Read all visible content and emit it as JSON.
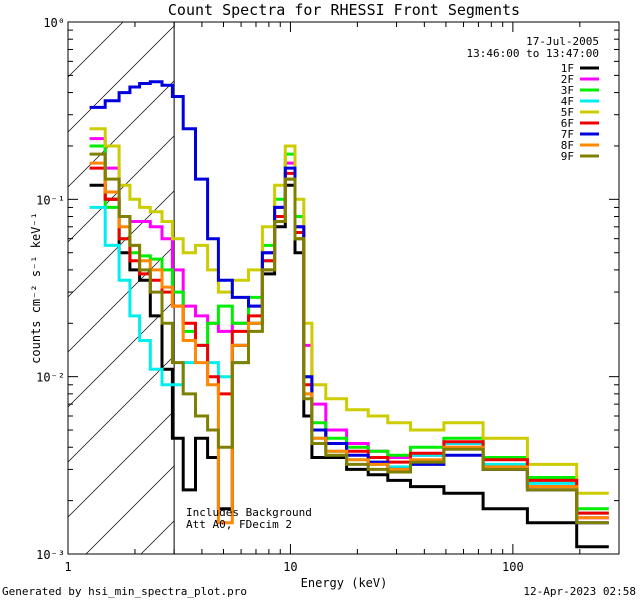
{
  "chart_data": {
    "type": "line",
    "title": "Count Spectra for RHESSI Front Segments",
    "xlabel": "Energy (keV)",
    "ylabel": "counts cm⁻² s⁻¹ keV⁻¹",
    "xscale": "log",
    "yscale": "log",
    "xlim": [
      1.0,
      300.0
    ],
    "ylim": [
      0.001,
      1.0
    ],
    "x_ticks": [
      {
        "value": 1,
        "label": "1"
      },
      {
        "value": 10,
        "label": "10"
      },
      {
        "value": 100,
        "label": "100"
      }
    ],
    "y_ticks": [
      {
        "value": 0.001,
        "label": "10⁻³"
      },
      {
        "value": 0.01,
        "label": "10⁻²"
      },
      {
        "value": 0.1,
        "label": "10⁻¹"
      },
      {
        "value": 1.0,
        "label": "10⁰"
      }
    ],
    "hatched_region": {
      "x_min": 1.0,
      "x_max": 3.0
    },
    "annotations": {
      "date": "17-Jul-2005",
      "time_range": "13:46:00 to 13:47:00",
      "background_note": "Includes Background",
      "attenuator_note": "Att A0, FDecim 2"
    },
    "legend_position": "top-right",
    "series": [
      {
        "name": "1F",
        "color": "#000000",
        "points": [
          [
            1.35,
            0.12
          ],
          [
            1.6,
            0.1
          ],
          [
            1.8,
            0.05
          ],
          [
            2.0,
            0.04
          ],
          [
            2.2,
            0.035
          ],
          [
            2.5,
            0.022
          ],
          [
            2.8,
            0.011
          ],
          [
            3.1,
            0.0045
          ],
          [
            3.5,
            0.0023
          ],
          [
            4.0,
            0.0045
          ],
          [
            4.5,
            0.0035
          ],
          [
            5.0,
            0.0018
          ],
          [
            6.0,
            0.015
          ],
          [
            7.0,
            0.02
          ],
          [
            8.0,
            0.038
          ],
          [
            9.0,
            0.07
          ],
          [
            10.0,
            0.12
          ],
          [
            11.0,
            0.05
          ],
          [
            12.0,
            0.006
          ],
          [
            13.0,
            0.0035
          ],
          [
            16.0,
            0.0035
          ],
          [
            20.0,
            0.003
          ],
          [
            25.0,
            0.0028
          ],
          [
            30.0,
            0.0026
          ],
          [
            40.0,
            0.0024
          ],
          [
            60.0,
            0.0022
          ],
          [
            90.0,
            0.0018
          ],
          [
            150.0,
            0.0015
          ],
          [
            250.0,
            0.0011
          ]
        ]
      },
      {
        "name": "2F",
        "color": "#ff00ff",
        "points": [
          [
            1.35,
            0.22
          ],
          [
            1.6,
            0.15
          ],
          [
            1.8,
            0.08
          ],
          [
            2.0,
            0.075
          ],
          [
            2.2,
            0.075
          ],
          [
            2.5,
            0.07
          ],
          [
            2.8,
            0.06
          ],
          [
            3.1,
            0.04
          ],
          [
            3.5,
            0.025
          ],
          [
            4.0,
            0.022
          ],
          [
            4.5,
            0.02
          ],
          [
            5.0,
            0.018
          ],
          [
            6.0,
            0.02
          ],
          [
            7.0,
            0.025
          ],
          [
            8.0,
            0.05
          ],
          [
            9.0,
            0.09
          ],
          [
            10.0,
            0.16
          ],
          [
            11.0,
            0.07
          ],
          [
            12.0,
            0.015
          ],
          [
            13.0,
            0.007
          ],
          [
            16.0,
            0.005
          ],
          [
            20.0,
            0.0042
          ],
          [
            25.0,
            0.0038
          ],
          [
            30.0,
            0.0035
          ],
          [
            40.0,
            0.0036
          ],
          [
            60.0,
            0.004
          ],
          [
            90.0,
            0.003
          ],
          [
            150.0,
            0.0024
          ],
          [
            250.0,
            0.0016
          ]
        ]
      },
      {
        "name": "3F",
        "color": "#00ee00",
        "points": [
          [
            1.35,
            0.2
          ],
          [
            1.6,
            0.09
          ],
          [
            1.8,
            0.06
          ],
          [
            2.0,
            0.05
          ],
          [
            2.2,
            0.048
          ],
          [
            2.5,
            0.046
          ],
          [
            2.8,
            0.04
          ],
          [
            3.1,
            0.03
          ],
          [
            3.5,
            0.018
          ],
          [
            4.0,
            0.015
          ],
          [
            4.5,
            0.02
          ],
          [
            5.0,
            0.025
          ],
          [
            6.0,
            0.02
          ],
          [
            7.0,
            0.028
          ],
          [
            8.0,
            0.055
          ],
          [
            9.0,
            0.1
          ],
          [
            10.0,
            0.18
          ],
          [
            11.0,
            0.08
          ],
          [
            12.0,
            0.01
          ],
          [
            13.0,
            0.0055
          ],
          [
            16.0,
            0.0045
          ],
          [
            20.0,
            0.004
          ],
          [
            25.0,
            0.0038
          ],
          [
            30.0,
            0.0036
          ],
          [
            40.0,
            0.004
          ],
          [
            60.0,
            0.0045
          ],
          [
            90.0,
            0.0035
          ],
          [
            150.0,
            0.0027
          ],
          [
            250.0,
            0.0018
          ]
        ]
      },
      {
        "name": "4F",
        "color": "#00eeee",
        "points": [
          [
            1.35,
            0.09
          ],
          [
            1.6,
            0.055
          ],
          [
            1.8,
            0.035
          ],
          [
            2.0,
            0.022
          ],
          [
            2.2,
            0.016
          ],
          [
            2.5,
            0.011
          ],
          [
            2.8,
            0.009
          ],
          [
            3.1,
            0.009
          ],
          [
            3.5,
            0.012
          ],
          [
            4.0,
            0.015
          ],
          [
            4.5,
            0.012
          ],
          [
            5.0,
            0.01
          ],
          [
            6.0,
            0.012
          ],
          [
            7.0,
            0.02
          ],
          [
            8.0,
            0.045
          ],
          [
            9.0,
            0.08
          ],
          [
            10.0,
            0.13
          ],
          [
            11.0,
            0.06
          ],
          [
            12.0,
            0.008
          ],
          [
            13.0,
            0.0045
          ],
          [
            16.0,
            0.0038
          ],
          [
            20.0,
            0.0034
          ],
          [
            25.0,
            0.0032
          ],
          [
            30.0,
            0.0031
          ],
          [
            40.0,
            0.0036
          ],
          [
            60.0,
            0.0042
          ],
          [
            90.0,
            0.0032
          ],
          [
            150.0,
            0.0025
          ],
          [
            250.0,
            0.0017
          ]
        ]
      },
      {
        "name": "5F",
        "color": "#cccc00",
        "points": [
          [
            1.35,
            0.25
          ],
          [
            1.6,
            0.2
          ],
          [
            1.8,
            0.12
          ],
          [
            2.0,
            0.1
          ],
          [
            2.2,
            0.09
          ],
          [
            2.5,
            0.085
          ],
          [
            2.8,
            0.075
          ],
          [
            3.1,
            0.06
          ],
          [
            3.5,
            0.05
          ],
          [
            4.0,
            0.055
          ],
          [
            4.5,
            0.04
          ],
          [
            5.0,
            0.03
          ],
          [
            6.0,
            0.035
          ],
          [
            7.0,
            0.04
          ],
          [
            8.0,
            0.07
          ],
          [
            9.0,
            0.12
          ],
          [
            10.0,
            0.2
          ],
          [
            11.0,
            0.1
          ],
          [
            12.0,
            0.02
          ],
          [
            13.0,
            0.009
          ],
          [
            16.0,
            0.0075
          ],
          [
            20.0,
            0.0065
          ],
          [
            25.0,
            0.006
          ],
          [
            30.0,
            0.0055
          ],
          [
            40.0,
            0.005
          ],
          [
            60.0,
            0.0055
          ],
          [
            90.0,
            0.0045
          ],
          [
            150.0,
            0.0032
          ],
          [
            250.0,
            0.0022
          ]
        ]
      },
      {
        "name": "6F",
        "color": "#ee0000",
        "points": [
          [
            1.35,
            0.15
          ],
          [
            1.6,
            0.1
          ],
          [
            1.8,
            0.06
          ],
          [
            2.0,
            0.045
          ],
          [
            2.2,
            0.038
          ],
          [
            2.5,
            0.035
          ],
          [
            2.8,
            0.03
          ],
          [
            3.1,
            0.025
          ],
          [
            3.5,
            0.02
          ],
          [
            4.0,
            0.015
          ],
          [
            4.5,
            0.01
          ],
          [
            5.0,
            0.008
          ],
          [
            6.0,
            0.018
          ],
          [
            7.0,
            0.022
          ],
          [
            8.0,
            0.045
          ],
          [
            9.0,
            0.08
          ],
          [
            10.0,
            0.14
          ],
          [
            11.0,
            0.065
          ],
          [
            12.0,
            0.009
          ],
          [
            13.0,
            0.005
          ],
          [
            16.0,
            0.0042
          ],
          [
            20.0,
            0.0038
          ],
          [
            25.0,
            0.0035
          ],
          [
            30.0,
            0.0033
          ],
          [
            40.0,
            0.0037
          ],
          [
            60.0,
            0.0043
          ],
          [
            90.0,
            0.0034
          ],
          [
            150.0,
            0.0026
          ],
          [
            250.0,
            0.0017
          ]
        ]
      },
      {
        "name": "7F",
        "color": "#0000dd",
        "points": [
          [
            1.35,
            0.33
          ],
          [
            1.6,
            0.36
          ],
          [
            1.8,
            0.4
          ],
          [
            2.0,
            0.43
          ],
          [
            2.2,
            0.45
          ],
          [
            2.5,
            0.46
          ],
          [
            2.8,
            0.44
          ],
          [
            3.1,
            0.38
          ],
          [
            3.5,
            0.25
          ],
          [
            4.0,
            0.13
          ],
          [
            4.5,
            0.06
          ],
          [
            5.0,
            0.035
          ],
          [
            6.0,
            0.028
          ],
          [
            7.0,
            0.025
          ],
          [
            8.0,
            0.05
          ],
          [
            9.0,
            0.09
          ],
          [
            10.0,
            0.15
          ],
          [
            11.0,
            0.07
          ],
          [
            12.0,
            0.01
          ],
          [
            13.0,
            0.005
          ],
          [
            16.0,
            0.0042
          ],
          [
            20.0,
            0.0036
          ],
          [
            25.0,
            0.0033
          ],
          [
            30.0,
            0.003
          ],
          [
            40.0,
            0.0032
          ],
          [
            60.0,
            0.0036
          ],
          [
            90.0,
            0.003
          ],
          [
            150.0,
            0.0023
          ],
          [
            250.0,
            0.0015
          ]
        ]
      },
      {
        "name": "8F",
        "color": "#ff8800",
        "points": [
          [
            1.35,
            0.16
          ],
          [
            1.6,
            0.11
          ],
          [
            1.8,
            0.07
          ],
          [
            2.0,
            0.055
          ],
          [
            2.2,
            0.045
          ],
          [
            2.5,
            0.04
          ],
          [
            2.8,
            0.032
          ],
          [
            3.1,
            0.025
          ],
          [
            3.5,
            0.016
          ],
          [
            4.0,
            0.012
          ],
          [
            4.5,
            0.009
          ],
          [
            5.0,
            0.0015
          ],
          [
            6.0,
            0.015
          ],
          [
            7.0,
            0.02
          ],
          [
            8.0,
            0.04
          ],
          [
            9.0,
            0.075
          ],
          [
            10.0,
            0.13
          ],
          [
            11.0,
            0.06
          ],
          [
            12.0,
            0.008
          ],
          [
            13.0,
            0.0045
          ],
          [
            16.0,
            0.0038
          ],
          [
            20.0,
            0.0034
          ],
          [
            25.0,
            0.0032
          ],
          [
            30.0,
            0.003
          ],
          [
            40.0,
            0.0034
          ],
          [
            60.0,
            0.004
          ],
          [
            90.0,
            0.0031
          ],
          [
            150.0,
            0.0024
          ],
          [
            250.0,
            0.0016
          ]
        ]
      },
      {
        "name": "9F",
        "color": "#808000",
        "points": [
          [
            1.35,
            0.18
          ],
          [
            1.6,
            0.13
          ],
          [
            1.8,
            0.08
          ],
          [
            2.0,
            0.055
          ],
          [
            2.2,
            0.04
          ],
          [
            2.5,
            0.03
          ],
          [
            2.8,
            0.02
          ],
          [
            3.1,
            0.012
          ],
          [
            3.5,
            0.008
          ],
          [
            4.0,
            0.006
          ],
          [
            4.5,
            0.005
          ],
          [
            5.0,
            0.004
          ],
          [
            6.0,
            0.012
          ],
          [
            7.0,
            0.018
          ],
          [
            8.0,
            0.04
          ],
          [
            9.0,
            0.075
          ],
          [
            10.0,
            0.13
          ],
          [
            11.0,
            0.06
          ],
          [
            12.0,
            0.0075
          ],
          [
            13.0,
            0.0042
          ],
          [
            16.0,
            0.0036
          ],
          [
            20.0,
            0.0032
          ],
          [
            25.0,
            0.003
          ],
          [
            30.0,
            0.0029
          ],
          [
            40.0,
            0.0033
          ],
          [
            60.0,
            0.0039
          ],
          [
            90.0,
            0.003
          ],
          [
            150.0,
            0.0023
          ],
          [
            250.0,
            0.0015
          ]
        ]
      }
    ]
  },
  "footer": {
    "generator": "Generated by hsi_min_spectra_plot.pro",
    "timestamp": "12-Apr-2023 02:58"
  }
}
